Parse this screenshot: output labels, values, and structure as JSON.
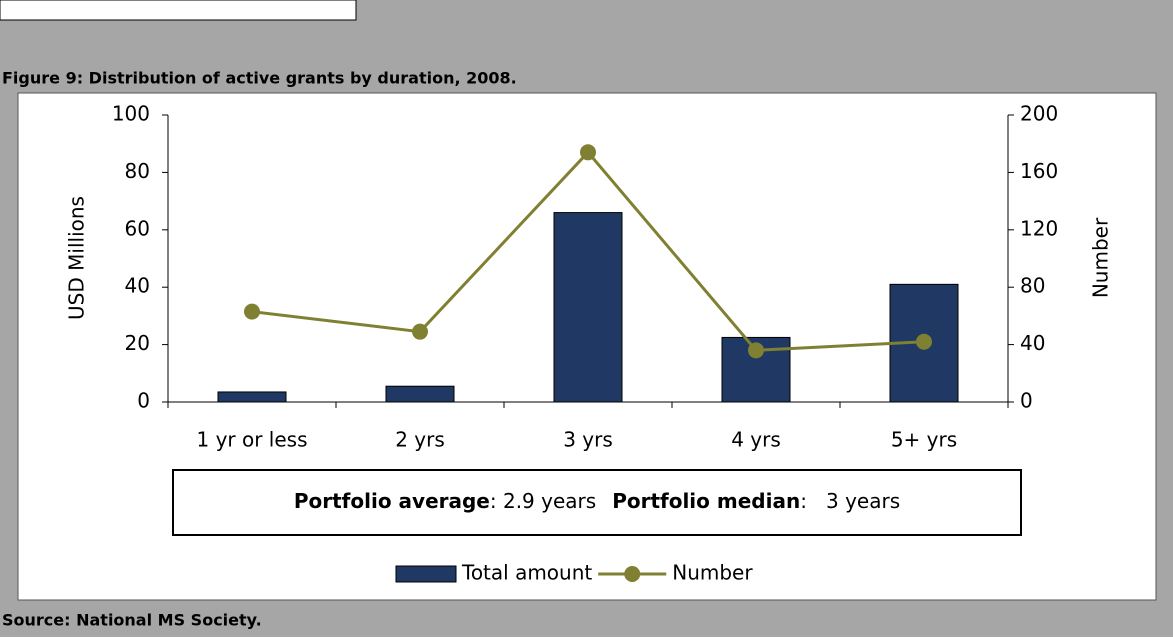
{
  "figure_title": "Figure 9: Distribution of active grants by duration, 2008.",
  "source": "Source: National MS Society.",
  "chart_data": {
    "type": "combo",
    "categories": [
      "1 yr or less",
      "2 yrs",
      "3 yrs",
      "4 yrs",
      "5+ yrs"
    ],
    "series": [
      {
        "name": "Total amount",
        "type": "bar",
        "color": "#1f3864",
        "values": [
          3.5,
          5.5,
          66,
          22.5,
          41
        ]
      },
      {
        "name": "Number",
        "type": "line",
        "color": "#7f8032",
        "axis": "y2",
        "values": [
          63,
          49,
          174,
          36,
          42
        ]
      }
    ],
    "ylabel": "USD Millions",
    "y2label": "Number",
    "ylim": [
      0,
      100
    ],
    "yticks": [
      0,
      20,
      40,
      60,
      80,
      100
    ],
    "y2lim": [
      0,
      200
    ],
    "y2ticks": [
      0,
      40,
      80,
      120,
      160,
      200
    ],
    "annotation": [
      {
        "text": "Portfolio average",
        "bold": true
      },
      {
        "text": ": 2.9 years",
        "bold": false
      },
      {
        "text": "Portfolio median",
        "bold": true
      },
      {
        "text": ":   3 years",
        "bold": false
      }
    ]
  }
}
